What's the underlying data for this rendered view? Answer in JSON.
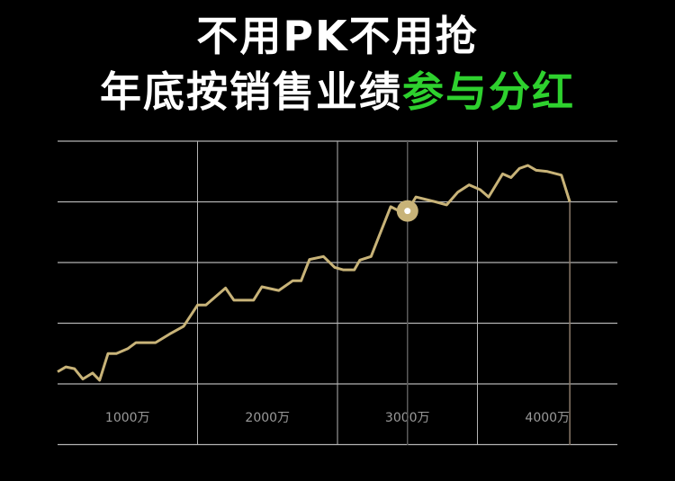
{
  "headline": {
    "line1": "不用PK不用抢",
    "line2_prefix": "年底按销售业绩",
    "line2_highlight": "参与分红"
  },
  "colors": {
    "background": "#000000",
    "headline": "#ffffff",
    "highlight": "#2ed12e",
    "series_line": "#c8b378",
    "grid": "#b4b4b4",
    "tick_label": "#9a9a9a",
    "marker": "#c8b378",
    "end_line": "#8a7a6a"
  },
  "chart_data": {
    "type": "line",
    "title": "",
    "xlabel": "",
    "ylabel": "",
    "x_ticks": [
      {
        "value": 1000,
        "label": "1000万"
      },
      {
        "value": 2000,
        "label": "2000万"
      },
      {
        "value": 3000,
        "label": "3000万"
      },
      {
        "value": 4000,
        "label": "4000万"
      }
    ],
    "xlim": [
      500,
      4500
    ],
    "ylim": [
      0,
      5
    ],
    "grid": true,
    "marker_x": 3000,
    "series": [
      {
        "values": [
          [
            500,
            0.2
          ],
          [
            560,
            0.28
          ],
          [
            620,
            0.25
          ],
          [
            680,
            0.08
          ],
          [
            750,
            0.18
          ],
          [
            800,
            0.06
          ],
          [
            860,
            0.5
          ],
          [
            920,
            0.5
          ],
          [
            1000,
            0.58
          ],
          [
            1060,
            0.68
          ],
          [
            1140,
            0.68
          ],
          [
            1200,
            0.68
          ],
          [
            1300,
            0.82
          ],
          [
            1400,
            0.95
          ],
          [
            1500,
            1.3
          ],
          [
            1560,
            1.3
          ],
          [
            1700,
            1.58
          ],
          [
            1760,
            1.38
          ],
          [
            1900,
            1.38
          ],
          [
            1960,
            1.6
          ],
          [
            2080,
            1.54
          ],
          [
            2180,
            1.7
          ],
          [
            2240,
            1.7
          ],
          [
            2300,
            2.05
          ],
          [
            2400,
            2.1
          ],
          [
            2480,
            1.92
          ],
          [
            2540,
            1.88
          ],
          [
            2620,
            1.88
          ],
          [
            2660,
            2.04
          ],
          [
            2740,
            2.1
          ],
          [
            2800,
            2.45
          ],
          [
            2880,
            2.92
          ],
          [
            2940,
            2.85
          ],
          [
            3000,
            2.85
          ],
          [
            3060,
            3.08
          ],
          [
            3200,
            3.0
          ],
          [
            3280,
            2.95
          ],
          [
            3360,
            3.16
          ],
          [
            3440,
            3.28
          ],
          [
            3520,
            3.2
          ],
          [
            3580,
            3.08
          ],
          [
            3680,
            3.46
          ],
          [
            3740,
            3.4
          ],
          [
            3800,
            3.55
          ],
          [
            3860,
            3.6
          ],
          [
            3920,
            3.52
          ],
          [
            4000,
            3.5
          ],
          [
            4100,
            3.44
          ],
          [
            4160,
            3.0
          ]
        ]
      }
    ]
  }
}
